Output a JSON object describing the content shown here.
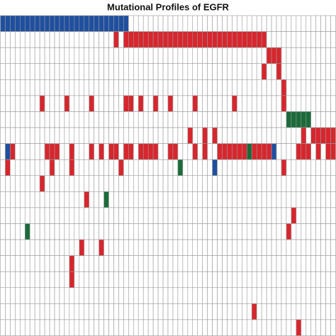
{
  "chart_data": {
    "type": "heatmap",
    "title": "Mutational Profiles of EGFR",
    "colors": [
      "#ffffff",
      "#d7262d",
      "#1f4f9f",
      "#1b6b3a"
    ],
    "values": [
      [
        2,
        2,
        2,
        2,
        2,
        2,
        2,
        2,
        2,
        2,
        2,
        2,
        2,
        2,
        2,
        2,
        2,
        2,
        2,
        2,
        2,
        2,
        2,
        2,
        2,
        2,
        0,
        0,
        0,
        0,
        0,
        0,
        0,
        0,
        0,
        0,
        0,
        0,
        0,
        0,
        0,
        0,
        0,
        0,
        0,
        0,
        0,
        0,
        0,
        0,
        0,
        0,
        0,
        0,
        0,
        0,
        0,
        0,
        0,
        0,
        0,
        0,
        0,
        0,
        0,
        0,
        0,
        0
      ],
      [
        0,
        0,
        0,
        0,
        0,
        0,
        0,
        0,
        0,
        0,
        0,
        0,
        0,
        0,
        0,
        0,
        0,
        0,
        0,
        0,
        0,
        0,
        0,
        1,
        0,
        1,
        1,
        1,
        1,
        1,
        1,
        1,
        1,
        1,
        1,
        1,
        1,
        1,
        1,
        1,
        1,
        1,
        1,
        1,
        1,
        1,
        1,
        1,
        1,
        1,
        1,
        1,
        1,
        1,
        0,
        0,
        0,
        0,
        0,
        0,
        0,
        0,
        0,
        0,
        0,
        0,
        0,
        0
      ],
      [
        0,
        0,
        0,
        0,
        0,
        0,
        0,
        0,
        0,
        0,
        0,
        0,
        0,
        0,
        0,
        0,
        0,
        0,
        0,
        0,
        0,
        0,
        0,
        0,
        0,
        0,
        0,
        0,
        0,
        0,
        0,
        0,
        0,
        0,
        0,
        0,
        0,
        0,
        0,
        0,
        0,
        0,
        0,
        0,
        0,
        0,
        0,
        0,
        0,
        0,
        0,
        0,
        0,
        0,
        1,
        1,
        1,
        0,
        0,
        0,
        0,
        0,
        0,
        0,
        0,
        0,
        0,
        0
      ],
      [
        0,
        0,
        0,
        0,
        0,
        0,
        0,
        0,
        0,
        0,
        0,
        0,
        0,
        0,
        0,
        0,
        0,
        0,
        0,
        0,
        0,
        0,
        0,
        0,
        0,
        0,
        0,
        0,
        0,
        0,
        0,
        0,
        0,
        0,
        0,
        0,
        0,
        0,
        0,
        0,
        0,
        0,
        0,
        0,
        0,
        0,
        0,
        0,
        0,
        0,
        0,
        0,
        0,
        1,
        0,
        0,
        1,
        0,
        0,
        0,
        0,
        0,
        0,
        0,
        0,
        0,
        0,
        0
      ],
      [
        0,
        0,
        0,
        0,
        0,
        0,
        0,
        0,
        0,
        0,
        0,
        0,
        0,
        0,
        0,
        0,
        0,
        0,
        0,
        0,
        0,
        0,
        0,
        0,
        0,
        0,
        0,
        0,
        0,
        0,
        0,
        0,
        0,
        0,
        0,
        0,
        0,
        0,
        0,
        0,
        0,
        0,
        0,
        0,
        0,
        0,
        0,
        0,
        0,
        0,
        0,
        0,
        0,
        0,
        0,
        0,
        0,
        1,
        0,
        0,
        0,
        0,
        0,
        0,
        0,
        0,
        0,
        0
      ],
      [
        0,
        0,
        0,
        0,
        0,
        0,
        0,
        0,
        1,
        0,
        0,
        0,
        0,
        1,
        0,
        0,
        0,
        0,
        1,
        0,
        0,
        0,
        0,
        0,
        0,
        1,
        1,
        0,
        1,
        0,
        0,
        1,
        0,
        0,
        1,
        0,
        0,
        0,
        0,
        1,
        0,
        0,
        0,
        0,
        0,
        0,
        0,
        1,
        0,
        0,
        0,
        0,
        0,
        0,
        0,
        0,
        0,
        1,
        0,
        0,
        0,
        0,
        0,
        0,
        0,
        0,
        0,
        0
      ],
      [
        0,
        0,
        0,
        0,
        0,
        0,
        0,
        0,
        0,
        0,
        0,
        0,
        0,
        0,
        0,
        0,
        0,
        0,
        0,
        0,
        0,
        0,
        0,
        0,
        0,
        0,
        0,
        0,
        0,
        0,
        0,
        0,
        0,
        0,
        0,
        0,
        0,
        0,
        0,
        0,
        0,
        0,
        0,
        0,
        0,
        0,
        0,
        0,
        0,
        0,
        0,
        0,
        0,
        0,
        0,
        0,
        0,
        0,
        3,
        3,
        3,
        3,
        3,
        0,
        0,
        0,
        0,
        0
      ],
      [
        0,
        0,
        0,
        0,
        0,
        0,
        0,
        0,
        0,
        0,
        0,
        0,
        0,
        0,
        0,
        0,
        0,
        0,
        0,
        0,
        0,
        0,
        0,
        0,
        0,
        0,
        0,
        0,
        0,
        0,
        0,
        0,
        0,
        0,
        0,
        0,
        0,
        0,
        1,
        0,
        0,
        1,
        0,
        1,
        0,
        0,
        0,
        0,
        0,
        0,
        0,
        0,
        0,
        0,
        0,
        0,
        0,
        0,
        0,
        0,
        0,
        1,
        0,
        1,
        1,
        1,
        1,
        1
      ],
      [
        0,
        2,
        1,
        0,
        0,
        0,
        0,
        0,
        0,
        1,
        1,
        1,
        0,
        0,
        1,
        0,
        0,
        0,
        1,
        0,
        1,
        0,
        1,
        1,
        0,
        1,
        1,
        0,
        1,
        1,
        1,
        1,
        0,
        0,
        1,
        1,
        0,
        0,
        0,
        1,
        0,
        1,
        0,
        0,
        1,
        1,
        1,
        1,
        1,
        1,
        3,
        1,
        1,
        1,
        1,
        2,
        0,
        0,
        0,
        0,
        1,
        1,
        1,
        0,
        1,
        0,
        1,
        1
      ],
      [
        0,
        1,
        0,
        0,
        0,
        0,
        0,
        0,
        0,
        0,
        1,
        0,
        0,
        0,
        1,
        0,
        0,
        0,
        0,
        0,
        0,
        0,
        0,
        0,
        1,
        0,
        0,
        0,
        0,
        0,
        0,
        0,
        0,
        0,
        0,
        0,
        3,
        0,
        0,
        0,
        0,
        0,
        0,
        2,
        0,
        0,
        0,
        0,
        0,
        0,
        0,
        0,
        0,
        0,
        0,
        0,
        0,
        1,
        0,
        0,
        0,
        0,
        0,
        0,
        0,
        0,
        0,
        0
      ],
      [
        0,
        0,
        0,
        0,
        0,
        0,
        0,
        0,
        1,
        0,
        0,
        0,
        0,
        0,
        0,
        0,
        0,
        0,
        0,
        0,
        0,
        0,
        0,
        0,
        0,
        0,
        0,
        0,
        0,
        0,
        0,
        0,
        0,
        0,
        0,
        0,
        0,
        0,
        0,
        0,
        0,
        0,
        0,
        0,
        0,
        0,
        0,
        0,
        0,
        0,
        0,
        0,
        0,
        0,
        0,
        0,
        0,
        0,
        0,
        0,
        0,
        0,
        0,
        0,
        0,
        0,
        0,
        0
      ],
      [
        0,
        0,
        0,
        0,
        0,
        0,
        0,
        0,
        0,
        0,
        0,
        0,
        0,
        0,
        0,
        0,
        0,
        1,
        0,
        0,
        0,
        3,
        0,
        0,
        0,
        0,
        0,
        0,
        0,
        0,
        0,
        0,
        0,
        0,
        0,
        0,
        0,
        0,
        0,
        0,
        0,
        0,
        0,
        0,
        0,
        0,
        0,
        0,
        0,
        0,
        0,
        0,
        0,
        0,
        0,
        0,
        0,
        0,
        0,
        0,
        0,
        0,
        0,
        0,
        0,
        0,
        0,
        0
      ],
      [
        0,
        0,
        0,
        0,
        0,
        0,
        0,
        0,
        0,
        0,
        0,
        0,
        0,
        0,
        0,
        0,
        0,
        0,
        0,
        0,
        0,
        0,
        0,
        0,
        0,
        0,
        0,
        0,
        0,
        0,
        0,
        0,
        0,
        0,
        0,
        0,
        0,
        0,
        0,
        0,
        0,
        0,
        0,
        0,
        0,
        0,
        0,
        0,
        0,
        0,
        0,
        0,
        0,
        0,
        0,
        0,
        0,
        0,
        0,
        1,
        0,
        0,
        0,
        0,
        0,
        0,
        0,
        0
      ],
      [
        0,
        0,
        0,
        0,
        0,
        3,
        0,
        0,
        0,
        0,
        0,
        0,
        0,
        0,
        0,
        0,
        0,
        0,
        0,
        0,
        0,
        0,
        0,
        0,
        0,
        0,
        0,
        0,
        0,
        0,
        0,
        0,
        0,
        0,
        0,
        0,
        0,
        0,
        0,
        0,
        0,
        0,
        0,
        0,
        0,
        0,
        0,
        0,
        0,
        0,
        0,
        0,
        0,
        0,
        0,
        0,
        0,
        0,
        1,
        0,
        0,
        0,
        0,
        0,
        0,
        0,
        0,
        0
      ],
      [
        0,
        0,
        0,
        0,
        0,
        0,
        0,
        0,
        0,
        0,
        0,
        0,
        0,
        0,
        0,
        0,
        1,
        0,
        0,
        0,
        1,
        0,
        0,
        0,
        0,
        0,
        0,
        0,
        0,
        0,
        0,
        0,
        0,
        0,
        0,
        0,
        0,
        0,
        0,
        0,
        0,
        0,
        0,
        0,
        0,
        0,
        0,
        0,
        0,
        0,
        0,
        0,
        0,
        0,
        0,
        0,
        0,
        0,
        0,
        0,
        0,
        0,
        0,
        0,
        0,
        0,
        0,
        0
      ],
      [
        0,
        0,
        0,
        0,
        0,
        0,
        0,
        0,
        0,
        0,
        0,
        0,
        0,
        0,
        1,
        0,
        0,
        0,
        0,
        0,
        0,
        0,
        0,
        0,
        0,
        0,
        0,
        0,
        0,
        0,
        0,
        0,
        0,
        0,
        0,
        0,
        0,
        0,
        0,
        0,
        0,
        0,
        0,
        0,
        0,
        0,
        0,
        0,
        0,
        0,
        0,
        0,
        0,
        0,
        0,
        0,
        0,
        0,
        0,
        0,
        0,
        0,
        0,
        0,
        0,
        0,
        0,
        0
      ],
      [
        0,
        0,
        0,
        0,
        0,
        0,
        0,
        0,
        0,
        0,
        0,
        0,
        0,
        0,
        1,
        0,
        0,
        0,
        0,
        0,
        0,
        0,
        0,
        0,
        0,
        0,
        0,
        0,
        0,
        0,
        0,
        0,
        0,
        0,
        0,
        0,
        0,
        0,
        0,
        0,
        0,
        0,
        0,
        0,
        0,
        0,
        0,
        0,
        0,
        0,
        0,
        0,
        0,
        0,
        0,
        0,
        0,
        0,
        0,
        0,
        0,
        0,
        0,
        0,
        0,
        0,
        0,
        0
      ],
      [
        0,
        0,
        0,
        0,
        0,
        0,
        0,
        0,
        0,
        0,
        0,
        0,
        0,
        0,
        0,
        0,
        0,
        0,
        0,
        0,
        0,
        0,
        0,
        0,
        0,
        0,
        0,
        0,
        0,
        0,
        0,
        0,
        0,
        0,
        0,
        0,
        0,
        0,
        0,
        0,
        0,
        0,
        0,
        0,
        0,
        0,
        0,
        0,
        0,
        0,
        0,
        0,
        0,
        0,
        0,
        0,
        0,
        0,
        0,
        0,
        0,
        0,
        0,
        0,
        0,
        0,
        0,
        0
      ],
      [
        0,
        0,
        0,
        0,
        0,
        0,
        0,
        0,
        0,
        0,
        0,
        0,
        0,
        0,
        0,
        0,
        0,
        0,
        0,
        0,
        0,
        0,
        0,
        0,
        0,
        0,
        0,
        0,
        0,
        0,
        0,
        0,
        0,
        0,
        0,
        0,
        0,
        0,
        0,
        0,
        0,
        0,
        0,
        0,
        0,
        0,
        0,
        0,
        0,
        0,
        0,
        1,
        0,
        0,
        0,
        0,
        0,
        0,
        0,
        0,
        0,
        0,
        0,
        0,
        0,
        0,
        0,
        0
      ],
      [
        0,
        0,
        0,
        0,
        0,
        0,
        0,
        0,
        0,
        0,
        0,
        0,
        0,
        0,
        0,
        0,
        0,
        0,
        0,
        0,
        0,
        0,
        0,
        0,
        0,
        0,
        0,
        0,
        0,
        0,
        0,
        0,
        0,
        0,
        0,
        0,
        0,
        0,
        0,
        0,
        0,
        0,
        0,
        0,
        0,
        0,
        0,
        0,
        0,
        0,
        0,
        0,
        0,
        0,
        0,
        0,
        0,
        0,
        0,
        0,
        1,
        0,
        0,
        0,
        0,
        0,
        0,
        0
      ]
    ]
  }
}
